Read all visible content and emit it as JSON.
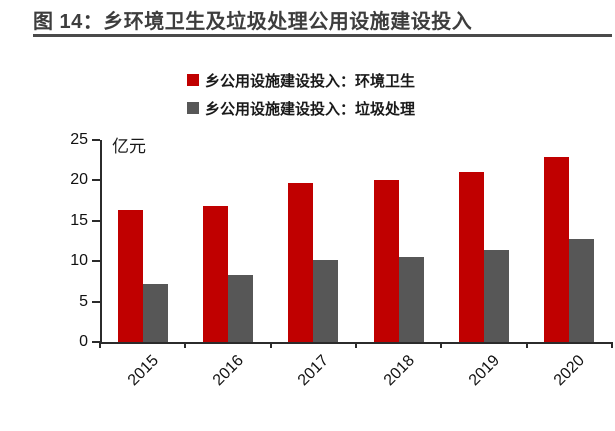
{
  "title": "图 14：乡环境卫生及垃圾处理公用设施建设投入",
  "chart_data": {
    "type": "bar",
    "title": "图 14：乡环境卫生及垃圾处理公用设施建设投入",
    "categories": [
      "2015",
      "2016",
      "2017",
      "2018",
      "2019",
      "2020"
    ],
    "series": [
      {
        "name": "乡公用设施建设投入：环境卫生",
        "color": "#c00000",
        "values": [
          16.3,
          16.8,
          19.7,
          20.0,
          21.0,
          22.9
        ]
      },
      {
        "name": "乡公用设施建设投入：垃圾处理",
        "color": "#575757",
        "values": [
          7.2,
          8.3,
          10.1,
          10.5,
          11.4,
          12.8
        ]
      }
    ],
    "xlabel": "",
    "ylabel": "亿元",
    "ylim": [
      0,
      25
    ],
    "yticks": [
      0,
      5,
      10,
      15,
      20,
      25
    ],
    "grid": false,
    "legend_position": "top",
    "x_tick_rotation": 45
  }
}
